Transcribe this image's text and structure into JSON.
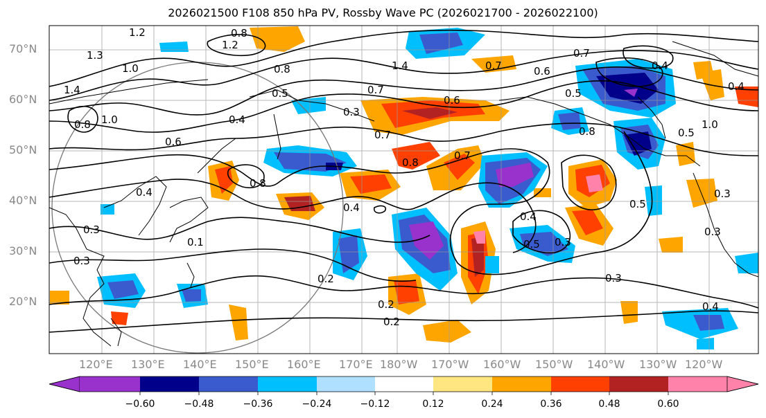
{
  "title": "2026021500 F108 850 hPa PV, Rossby Wave PC (2026021700 - 2026022100)",
  "lat_labels": [
    "70°N",
    "60°N",
    "50°N",
    "40°N",
    "30°N",
    "20°N"
  ],
  "lon_labels": [
    "120°E",
    "130°E",
    "140°E",
    "150°E",
    "160°E",
    "170°E",
    "180°W",
    "170°W",
    "160°W",
    "150°W",
    "140°W",
    "130°W",
    "120°W"
  ],
  "colorbar": {
    "ticks": [
      "−0.60",
      "−0.48",
      "−0.36",
      "−0.24",
      "−0.12",
      "0.12",
      "0.24",
      "0.36",
      "0.48",
      "0.60"
    ],
    "colors": [
      "#9932cc",
      "#00008b",
      "#3a5bcd",
      "#00bfff",
      "#b0e0ff",
      "#ffffff",
      "#ffe680",
      "#ffa500",
      "#ff4000",
      "#b22222",
      "#ff82ab"
    ]
  },
  "contour_labels": [
    "1.2",
    "0.8",
    "1.2",
    "1.3",
    "1.0",
    "1.4",
    "1.0",
    "0.8",
    "0.8",
    "0.6",
    "0.4",
    "0.4",
    "0.8",
    "0.5",
    "0.3",
    "0.7",
    "0.7",
    "0.6",
    "1.4",
    "0.7",
    "0.6",
    "0.5",
    "0.8",
    "1.0",
    "0.5",
    "0.7",
    "0.8",
    "0.7",
    "0.4",
    "0.4",
    "0.2",
    "0.3",
    "0.1",
    "0.3",
    "0.4",
    "0.3",
    "0.2",
    "0.2",
    "0.3",
    "0.4",
    "0.5",
    "0.3",
    "0.3",
    "0.4",
    "0.5"
  ],
  "map_colors": {
    "purple": "#9932cc",
    "navy": "#00008b",
    "blue": "#3a5bcd",
    "cyan": "#00bfff",
    "yellow": "#ffe680",
    "orange": "#ffa500",
    "red": "#ff4000",
    "darkred": "#b22222",
    "pink": "#ff82ab"
  }
}
